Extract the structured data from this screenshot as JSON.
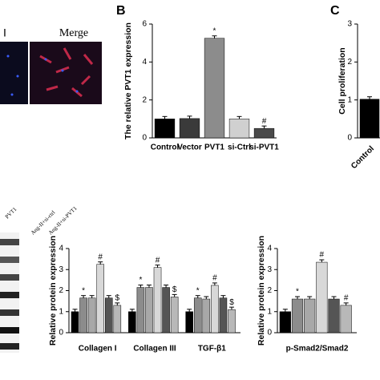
{
  "panels": {
    "micro_labels": [
      "I",
      "Merge"
    ],
    "blot_labels": [
      "PVT1",
      "Ang-II+si-ctrl",
      "Ang-II+si-PVT1"
    ]
  },
  "chart_data": [
    {
      "type": "bar",
      "panel": "B",
      "y_label": "The relative PVT1 expression",
      "categories": [
        "Control",
        "Vector",
        "PVT1",
        "si-Ctrl",
        "si-PVT1"
      ],
      "series": [
        {
          "color": [
            "#000000",
            "#3a3a3a",
            "#8c8c8c",
            "#d0d0d0",
            "#4a4a4a"
          ],
          "values": [
            1,
            1.02,
            5.25,
            1.0,
            0.5
          ],
          "annotations": [
            null,
            null,
            "*",
            null,
            "#"
          ]
        }
      ],
      "ylim": [
        0,
        6
      ],
      "yticks": [
        0,
        2,
        4,
        6
      ]
    },
    {
      "type": "bar",
      "panel": "C",
      "y_label": "Cell proliferation",
      "categories": [
        "Control"
      ],
      "series": [
        {
          "color": [
            "#000000"
          ],
          "values": [
            1.02
          ],
          "annotations": [
            null
          ]
        }
      ],
      "ylim": [
        0,
        3
      ],
      "yticks": [
        0,
        1,
        2,
        3
      ]
    },
    {
      "type": "bar",
      "y_label": "Relative protein expression",
      "categories": [
        "Collagen I",
        "Collagen III",
        "TGF-β1"
      ],
      "series": [
        {
          "color": "#000000",
          "values": [
            1,
            1,
            1
          ],
          "annotations": [
            null,
            null,
            null
          ]
        },
        {
          "color": "#8c8c8c",
          "values": [
            1.65,
            2.15,
            1.65
          ],
          "annotations": [
            "*",
            "*",
            "*"
          ]
        },
        {
          "color": "#a8a8a8",
          "values": [
            1.65,
            2.15,
            1.6
          ],
          "annotations": [
            null,
            null,
            null
          ]
        },
        {
          "color": "#d8d8d8",
          "values": [
            3.25,
            3.1,
            2.25
          ],
          "annotations": [
            "#",
            "#",
            "#"
          ]
        },
        {
          "color": "#555555",
          "values": [
            1.65,
            2.15,
            1.65
          ],
          "annotations": [
            null,
            null,
            null
          ]
        },
        {
          "color": "#b8b8b8",
          "values": [
            1.3,
            1.7,
            1.1
          ],
          "annotations": [
            "$",
            "$",
            "$"
          ]
        }
      ],
      "ylim": [
        0,
        4
      ],
      "yticks": [
        0,
        1,
        2,
        3,
        4
      ]
    },
    {
      "type": "bar",
      "y_label": "Relative protein expression",
      "categories": [
        "p-Smad2/Smad2"
      ],
      "series": [
        {
          "color": "#000000",
          "values": [
            1
          ],
          "annotations": [
            null
          ]
        },
        {
          "color": "#8c8c8c",
          "values": [
            1.6
          ],
          "annotations": [
            "*"
          ]
        },
        {
          "color": "#a8a8a8",
          "values": [
            1.6
          ],
          "annotations": [
            null
          ]
        },
        {
          "color": "#d8d8d8",
          "values": [
            3.35
          ],
          "annotations": [
            "#"
          ]
        },
        {
          "color": "#555555",
          "values": [
            1.6
          ],
          "annotations": [
            null
          ]
        },
        {
          "color": "#b8b8b8",
          "values": [
            1.3
          ],
          "annotations": [
            "#"
          ]
        }
      ],
      "ylim": [
        0,
        4
      ],
      "yticks": [
        0,
        1,
        2,
        3,
        4
      ]
    }
  ]
}
